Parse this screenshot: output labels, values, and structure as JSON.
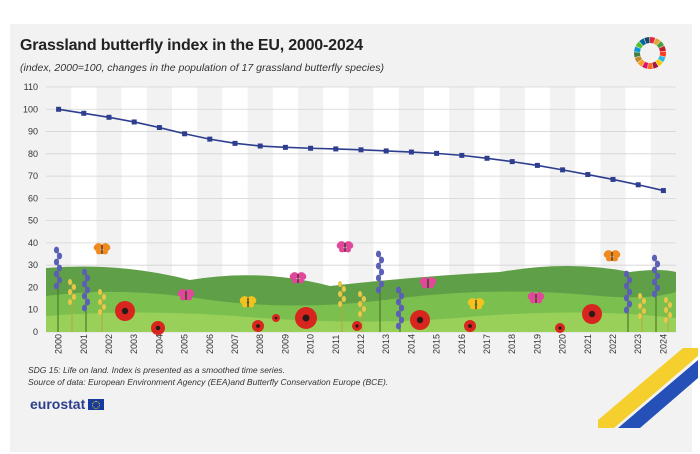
{
  "chart_data": {
    "type": "line",
    "title": "Grassland butterfly index in the EU, 2000-2024",
    "subtitle": "(index, 2000=100, changes in the population of 17 grassland butterfly species)",
    "xlabel": "",
    "ylabel": "",
    "ylim": [
      0,
      110
    ],
    "yticks": [
      0,
      10,
      20,
      30,
      40,
      50,
      60,
      70,
      80,
      90,
      100,
      110
    ],
    "grid": true,
    "legend": "none",
    "categories": [
      "2000",
      "2001",
      "2002",
      "2003",
      "2004",
      "2005",
      "2006",
      "2007",
      "2008",
      "2009",
      "2010",
      "2011",
      "2012",
      "2013",
      "2014",
      "2015",
      "2016",
      "2017",
      "2018",
      "2019",
      "2020",
      "2021",
      "2022",
      "2023",
      "2024"
    ],
    "series": [
      {
        "values": [
          100,
          98.2,
          96.4,
          94.3,
          91.8,
          89.0,
          86.6,
          84.7,
          83.5,
          82.9,
          82.5,
          82.2,
          81.8,
          81.3,
          80.8,
          80.2,
          79.3,
          78.0,
          76.5,
          74.8,
          72.8,
          70.7,
          68.5,
          66.1,
          63.5
        ],
        "color": "#2e3e8f"
      }
    ]
  },
  "footnotes": [
    "SDG 15: Life on land.  Index is presented as a smoothed time series.",
    "Source of data: European Environment Agency (EEA)and Butterfly Conservation Europe (BCE)."
  ],
  "brand": {
    "logo_text": "eurostat"
  },
  "colors": {
    "line": "#2e3e8f",
    "hills": "#6aa84f",
    "background": "#f2f2f2",
    "stripe": "#ffffff"
  },
  "icons": [
    "sdg-wheel-icon",
    "eu-flag-icon",
    "butterfly-icon",
    "poppy-icon",
    "lavender-icon"
  ]
}
